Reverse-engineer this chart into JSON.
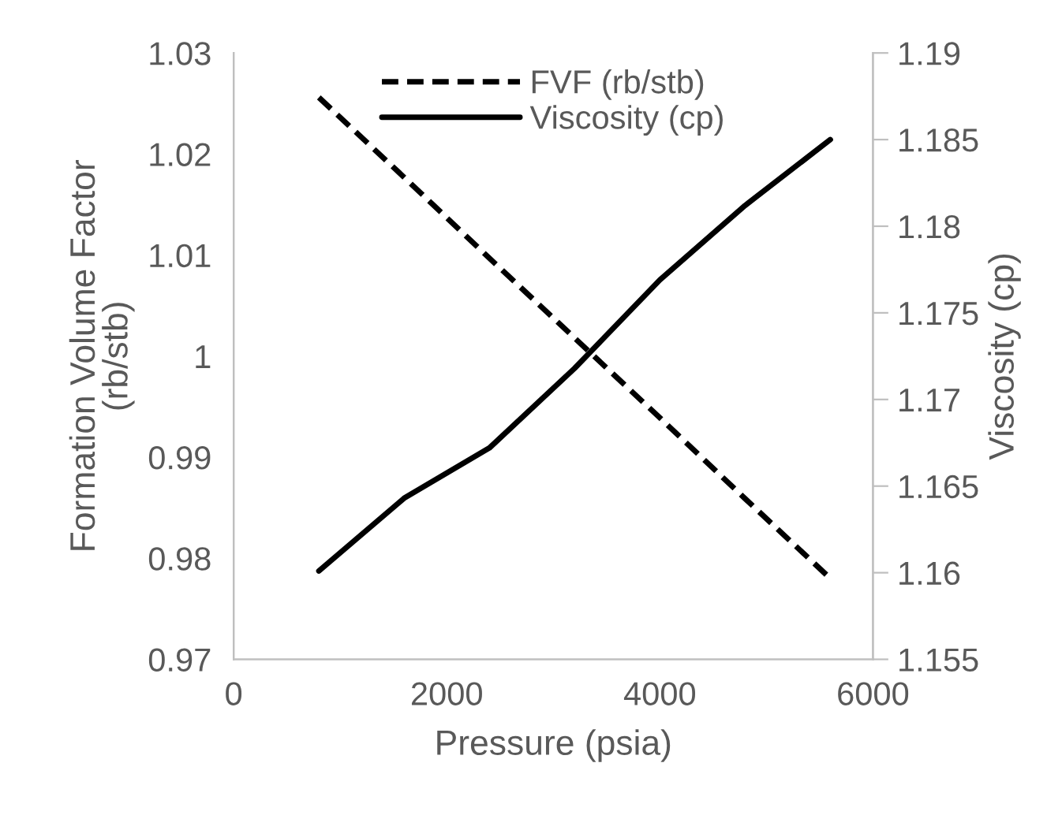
{
  "chart_data": {
    "type": "line",
    "xlabel": "Pressure (psia)",
    "ylabel": "Formation Volume Factor\n(rb/stb)",
    "y2label": "Viscosity (cp)",
    "x": [
      800,
      1600,
      2400,
      3200,
      4000,
      4800,
      5600
    ],
    "xlim": [
      0,
      6000
    ],
    "xticks": [
      0,
      2000,
      4000,
      6000
    ],
    "ylim": [
      0.97,
      1.03
    ],
    "yticks": [
      0.97,
      0.98,
      0.99,
      1,
      1.01,
      1.02,
      1.03
    ],
    "y2lim": [
      1.155,
      1.19
    ],
    "y2ticks": [
      1.155,
      1.16,
      1.165,
      1.17,
      1.175,
      1.18,
      1.185,
      1.19
    ],
    "series": [
      {
        "name": "FVF (rb/stb)",
        "color": "#000000",
        "line_style": "dashed",
        "values": [
          1.0256,
          1.0177,
          1.0097,
          1.0018,
          0.9939,
          0.9859,
          0.978
        ]
      },
      {
        "name": "Viscosity (cp)",
        "color": "#000000",
        "line_style": "solid",
        "axis": "y2",
        "values": [
          1.1601,
          1.1643,
          1.1672,
          1.1718,
          1.1769,
          1.1812,
          1.185
        ]
      }
    ],
    "grid": false,
    "legend": "top",
    "marker": "none"
  }
}
